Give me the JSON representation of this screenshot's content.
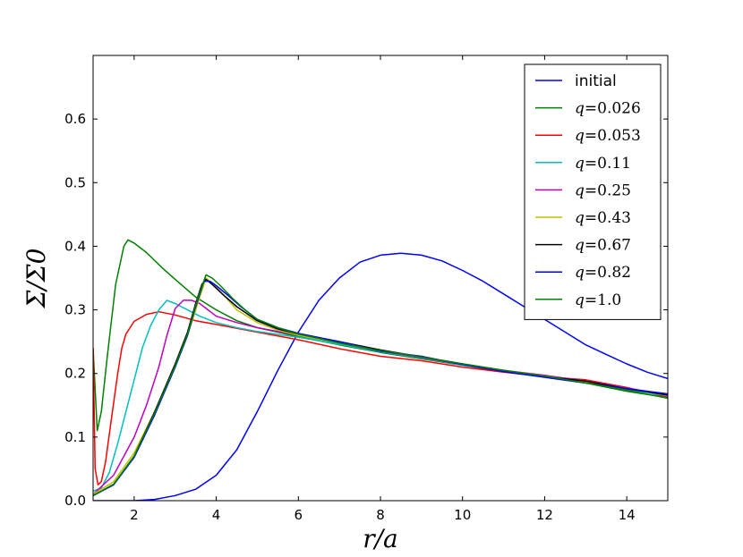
{
  "chart_data": {
    "type": "line",
    "title": "",
    "xlabel": "r/a",
    "ylabel": "Σ/Σ0",
    "xlim": [
      1.0,
      15.0
    ],
    "ylim": [
      0.0,
      0.7
    ],
    "xticks": [
      2,
      4,
      6,
      8,
      10,
      12,
      14
    ],
    "yticks": [
      0.0,
      0.1,
      0.2,
      0.3,
      0.4,
      0.5,
      0.6
    ],
    "xtick_labels": [
      "2",
      "4",
      "6",
      "8",
      "10",
      "12",
      "14"
    ],
    "ytick_labels": [
      "0.0",
      "0.1",
      "0.2",
      "0.3",
      "0.4",
      "0.5",
      "0.6"
    ],
    "grid": false,
    "legend_position": "top-right",
    "series": [
      {
        "name": "initial",
        "color": "#0000ff",
        "x": [
          1.0,
          1.5,
          2.0,
          2.5,
          3.0,
          3.5,
          4.0,
          4.5,
          5.0,
          5.5,
          6.0,
          6.5,
          7.0,
          7.5,
          8.0,
          8.5,
          9.0,
          9.5,
          10.0,
          10.5,
          11.0,
          11.5,
          12.0,
          12.5,
          13.0,
          13.5,
          14.0,
          14.5,
          15.0
        ],
        "y": [
          0.0,
          0.0,
          0.0,
          0.002,
          0.008,
          0.018,
          0.04,
          0.08,
          0.14,
          0.205,
          0.265,
          0.315,
          0.35,
          0.375,
          0.386,
          0.389,
          0.386,
          0.377,
          0.362,
          0.345,
          0.325,
          0.305,
          0.285,
          0.265,
          0.245,
          0.23,
          0.215,
          0.202,
          0.192
        ]
      },
      {
        "name": "q=0.026",
        "color": "#008000",
        "x": [
          1.0,
          1.1,
          1.2,
          1.35,
          1.55,
          1.75,
          1.85,
          2.0,
          2.3,
          2.7,
          3.0,
          3.5,
          4.0,
          4.5,
          5.0,
          5.5,
          6.0,
          7.0,
          8.0,
          9.0,
          10.0,
          11.0,
          12.0,
          13.0,
          14.0,
          15.0
        ],
        "y": [
          0.24,
          0.11,
          0.14,
          0.23,
          0.34,
          0.4,
          0.41,
          0.405,
          0.39,
          0.365,
          0.348,
          0.32,
          0.3,
          0.283,
          0.272,
          0.265,
          0.258,
          0.245,
          0.233,
          0.223,
          0.213,
          0.203,
          0.195,
          0.185,
          0.172,
          0.162
        ]
      },
      {
        "name": "q=0.053",
        "color": "#ff0000",
        "x": [
          1.0,
          1.05,
          1.12,
          1.2,
          1.3,
          1.45,
          1.6,
          1.7,
          1.8,
          2.0,
          2.3,
          2.6,
          3.0,
          3.5,
          4.0,
          5.0,
          6.0,
          7.0,
          8.0,
          9.0,
          10.0,
          11.0,
          12.0,
          13.0,
          14.0,
          15.0
        ],
        "y": [
          0.24,
          0.05,
          0.025,
          0.03,
          0.06,
          0.13,
          0.2,
          0.24,
          0.262,
          0.282,
          0.293,
          0.297,
          0.292,
          0.283,
          0.277,
          0.265,
          0.253,
          0.239,
          0.227,
          0.22,
          0.21,
          0.202,
          0.195,
          0.19,
          0.178,
          0.163
        ]
      },
      {
        "name": "q=0.11",
        "color": "#00bfbf",
        "x": [
          1.0,
          1.2,
          1.4,
          1.6,
          1.8,
          2.0,
          2.2,
          2.4,
          2.6,
          2.8,
          3.0,
          3.3,
          3.6,
          4.0,
          4.5,
          5.0,
          6.0,
          7.0,
          8.0,
          9.0,
          10.0,
          11.0,
          12.0,
          13.0,
          14.0,
          15.0
        ],
        "y": [
          0.015,
          0.02,
          0.045,
          0.09,
          0.14,
          0.19,
          0.24,
          0.275,
          0.3,
          0.315,
          0.31,
          0.3,
          0.29,
          0.28,
          0.272,
          0.266,
          0.257,
          0.246,
          0.234,
          0.224,
          0.213,
          0.204,
          0.196,
          0.187,
          0.175,
          0.165
        ]
      },
      {
        "name": "q=0.25",
        "color": "#bf00bf",
        "x": [
          1.0,
          1.5,
          2.0,
          2.3,
          2.6,
          2.8,
          3.0,
          3.2,
          3.4,
          3.6,
          3.8,
          4.0,
          4.5,
          5.0,
          6.0,
          7.0,
          8.0,
          9.0,
          10.0,
          11.0,
          12.0,
          13.0,
          14.0,
          15.0
        ],
        "y": [
          0.01,
          0.04,
          0.1,
          0.15,
          0.21,
          0.26,
          0.302,
          0.315,
          0.315,
          0.31,
          0.3,
          0.29,
          0.28,
          0.272,
          0.26,
          0.248,
          0.235,
          0.225,
          0.214,
          0.205,
          0.197,
          0.188,
          0.177,
          0.167
        ]
      },
      {
        "name": "q=0.43",
        "color": "#bfbf00",
        "x": [
          1.0,
          1.5,
          2.0,
          2.5,
          3.0,
          3.3,
          3.6,
          3.75,
          3.9,
          4.2,
          4.5,
          5.0,
          5.5,
          6.0,
          7.0,
          8.0,
          9.0,
          10.0,
          11.0,
          12.0,
          13.0,
          14.0,
          15.0
        ],
        "y": [
          0.01,
          0.03,
          0.075,
          0.14,
          0.21,
          0.26,
          0.32,
          0.35,
          0.342,
          0.322,
          0.3,
          0.28,
          0.268,
          0.26,
          0.248,
          0.236,
          0.226,
          0.215,
          0.205,
          0.196,
          0.187,
          0.176,
          0.166
        ]
      },
      {
        "name": "q=0.67",
        "color": "#000000",
        "x": [
          1.0,
          1.5,
          2.0,
          2.5,
          3.0,
          3.3,
          3.5,
          3.65,
          3.75,
          3.9,
          4.2,
          4.5,
          5.0,
          5.5,
          6.0,
          7.0,
          8.0,
          9.0,
          10.0,
          11.0,
          12.0,
          13.0,
          14.0,
          15.0
        ],
        "y": [
          0.008,
          0.025,
          0.07,
          0.14,
          0.215,
          0.265,
          0.31,
          0.34,
          0.348,
          0.34,
          0.322,
          0.305,
          0.283,
          0.27,
          0.262,
          0.25,
          0.237,
          0.226,
          0.215,
          0.205,
          0.195,
          0.188,
          0.176,
          0.166
        ]
      },
      {
        "name": "q=0.82",
        "color": "#0000ff",
        "x": [
          1.0,
          1.5,
          2.0,
          2.5,
          3.0,
          3.3,
          3.5,
          3.7,
          3.85,
          4.0,
          4.3,
          4.6,
          5.0,
          5.5,
          6.0,
          7.0,
          8.0,
          9.0,
          10.0,
          11.0,
          12.0,
          13.0,
          14.0,
          15.0
        ],
        "y": [
          0.008,
          0.025,
          0.068,
          0.135,
          0.21,
          0.26,
          0.305,
          0.345,
          0.345,
          0.338,
          0.322,
          0.305,
          0.285,
          0.272,
          0.263,
          0.25,
          0.235,
          0.227,
          0.214,
          0.203,
          0.194,
          0.185,
          0.176,
          0.168
        ]
      },
      {
        "name": "q=1.0",
        "color": "#008000",
        "x": [
          1.0,
          1.5,
          2.0,
          2.5,
          3.0,
          3.3,
          3.55,
          3.75,
          3.9,
          4.1,
          4.4,
          4.7,
          5.0,
          5.5,
          6.0,
          7.0,
          8.0,
          9.0,
          10.0,
          11.0,
          12.0,
          13.0,
          14.0,
          15.0
        ],
        "y": [
          0.008,
          0.026,
          0.07,
          0.138,
          0.212,
          0.262,
          0.318,
          0.355,
          0.35,
          0.338,
          0.318,
          0.3,
          0.285,
          0.272,
          0.262,
          0.248,
          0.236,
          0.226,
          0.215,
          0.205,
          0.196,
          0.185,
          0.174,
          0.161
        ]
      }
    ]
  }
}
